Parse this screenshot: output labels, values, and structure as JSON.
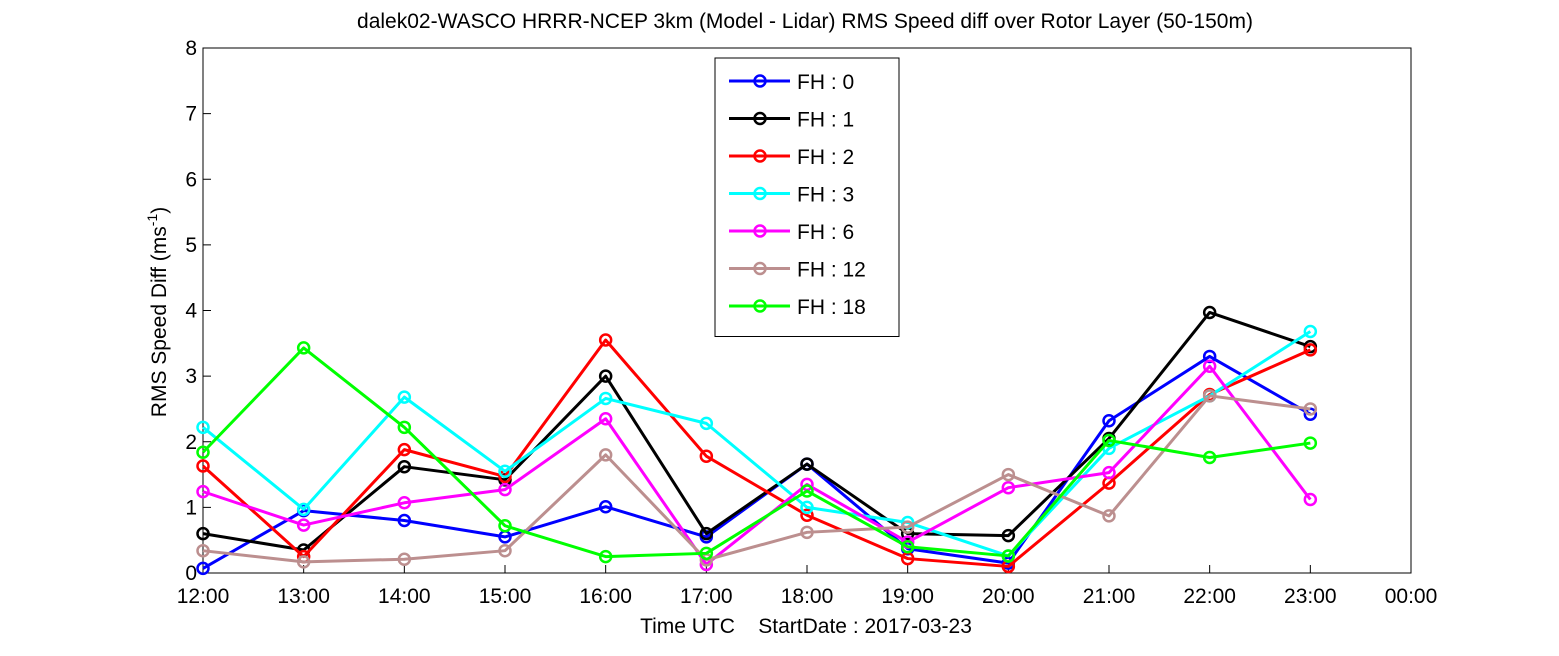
{
  "chart_data": {
    "type": "line",
    "title": "dalek02-WASCO HRRR-NCEP 3km (Model - Lidar) RMS Speed diff over Rotor Layer (50-150m)",
    "xlabel": "Time UTC    StartDate : 2017-03-23",
    "ylabel_main": "RMS Speed Diff (ms",
    "ylabel_sup": "-1",
    "ylabel_tail": ")",
    "x_ticks": [
      "12:00",
      "13:00",
      "14:00",
      "15:00",
      "16:00",
      "17:00",
      "18:00",
      "19:00",
      "20:00",
      "21:00",
      "22:00",
      "23:00",
      "00:00"
    ],
    "y_ticks": [
      "0",
      "1",
      "2",
      "3",
      "4",
      "5",
      "6",
      "7",
      "8"
    ],
    "xlim": [
      0,
      12
    ],
    "ylim": [
      0,
      8
    ],
    "grid": false,
    "legend_position": "top-center",
    "marker": "open-circle",
    "series": [
      {
        "name": "FH : 0",
        "color": "#0000ff",
        "values": [
          0.07,
          0.95,
          0.8,
          0.55,
          1.01,
          0.55,
          1.66,
          0.37,
          0.15,
          2.32,
          3.3,
          2.42
        ]
      },
      {
        "name": "FH : 1",
        "color": "#000000",
        "values": [
          0.6,
          0.35,
          1.62,
          1.42,
          3.0,
          0.6,
          1.66,
          0.6,
          0.57,
          2.05,
          3.97,
          3.45
        ]
      },
      {
        "name": "FH : 2",
        "color": "#ff0000",
        "values": [
          1.63,
          0.25,
          1.88,
          1.47,
          3.55,
          1.78,
          0.88,
          0.22,
          0.1,
          1.37,
          2.72,
          3.4
        ]
      },
      {
        "name": "FH : 3",
        "color": "#00ffff",
        "values": [
          2.22,
          0.97,
          2.68,
          1.55,
          2.66,
          2.28,
          1.0,
          0.77,
          0.26,
          1.9,
          2.7,
          3.68
        ]
      },
      {
        "name": "FH : 6",
        "color": "#ff00ff",
        "values": [
          1.24,
          0.73,
          1.07,
          1.27,
          2.35,
          0.13,
          1.35,
          0.47,
          1.3,
          1.53,
          3.15,
          1.12
        ]
      },
      {
        "name": "FH : 12",
        "color": "#bc8f8f",
        "values": [
          0.34,
          0.17,
          0.21,
          0.34,
          1.8,
          0.2,
          0.62,
          0.7,
          1.5,
          0.87,
          2.7,
          2.5
        ]
      },
      {
        "name": "FH : 18",
        "color": "#00ff00",
        "values": [
          1.84,
          3.43,
          2.22,
          0.72,
          0.25,
          0.3,
          1.25,
          0.4,
          0.26,
          2.02,
          1.76,
          1.98
        ]
      }
    ]
  }
}
